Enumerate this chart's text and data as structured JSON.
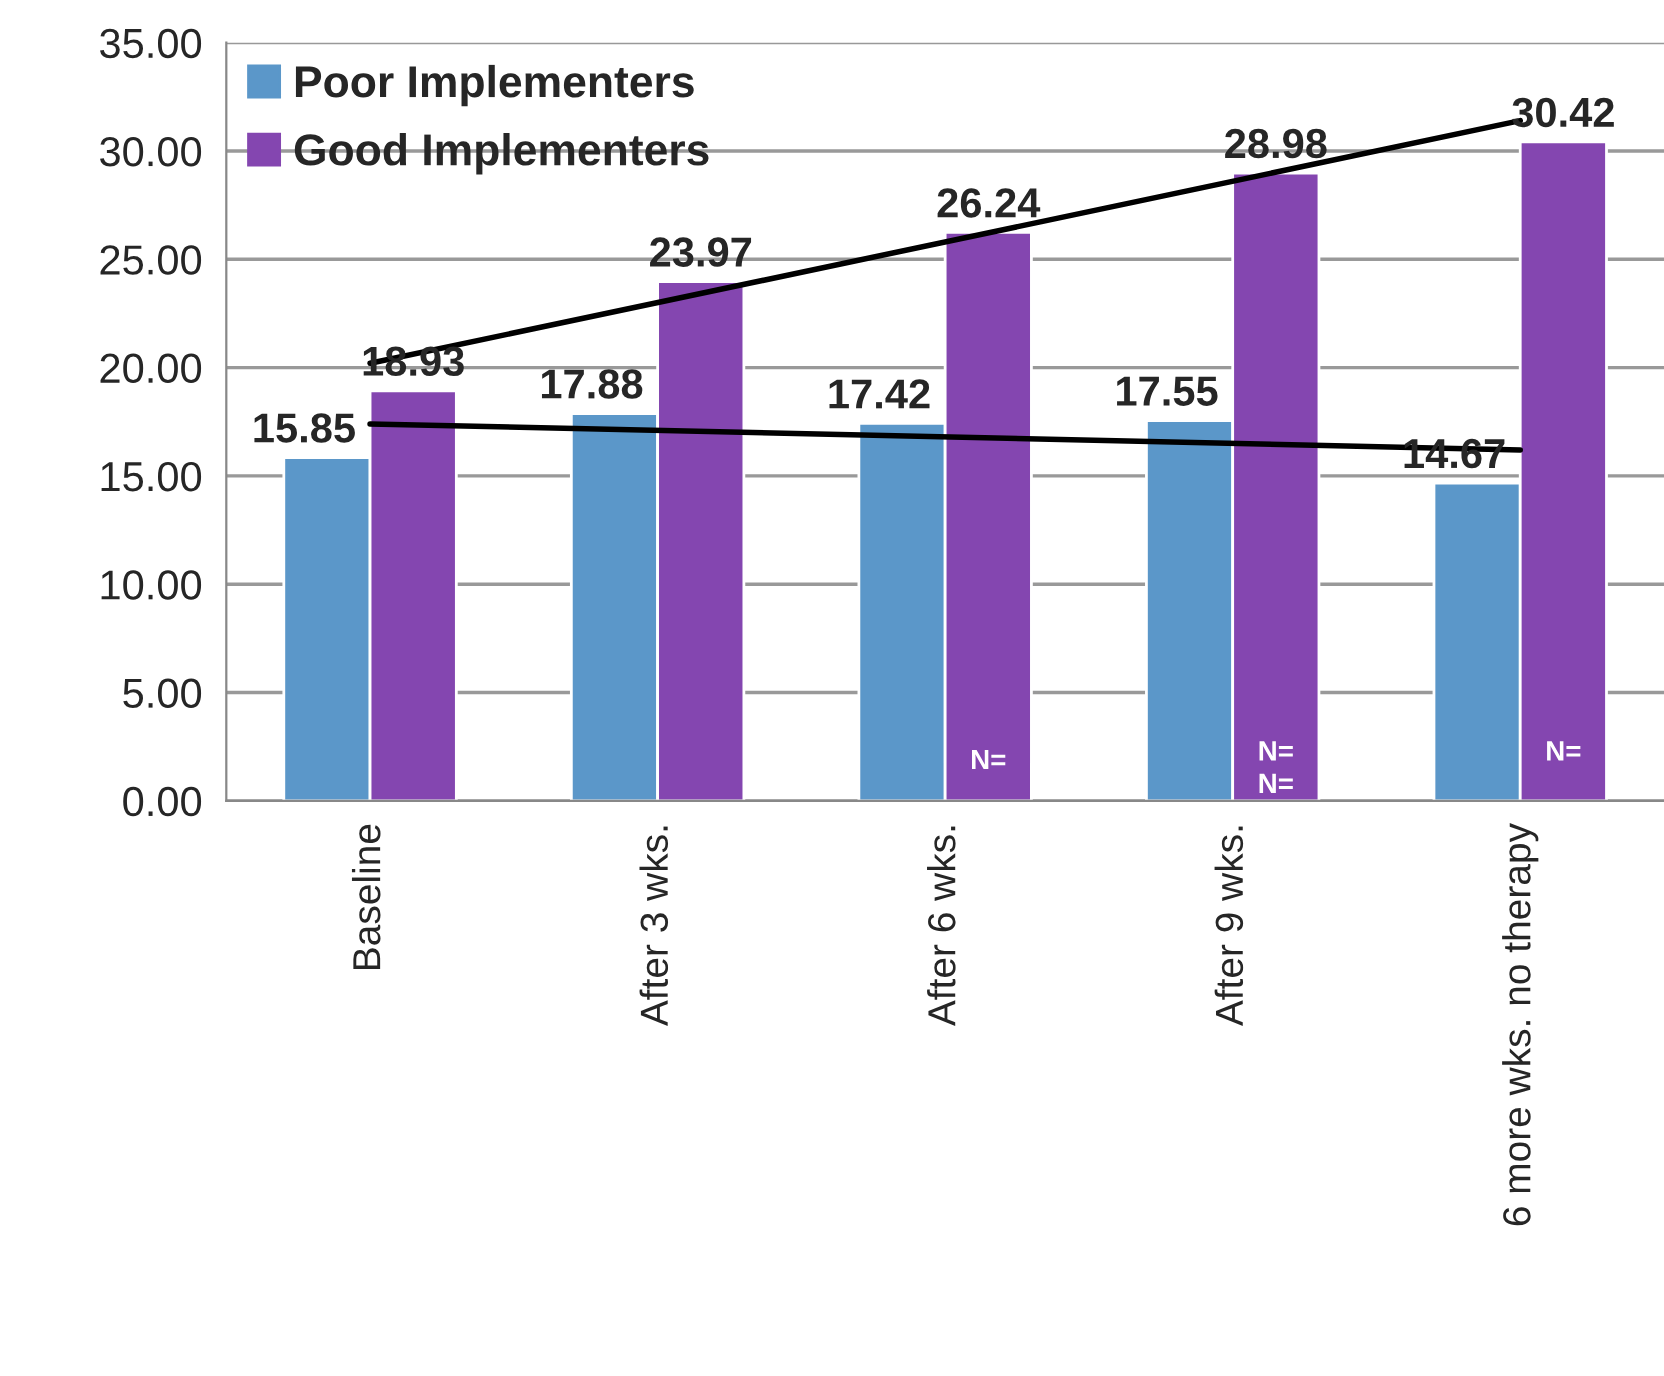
{
  "chart_data": {
    "type": "bar",
    "categories": [
      "Baseline",
      "After 3 wks.",
      "After 6 wks.",
      "After 9 wks.",
      "6 more wks. no therapy"
    ],
    "series": [
      {
        "name": "Poor Implementers",
        "color": "#5b97c9",
        "values": [
          15.85,
          17.88,
          17.42,
          17.55,
          14.67
        ],
        "value_labels": [
          "15.85",
          "17.88",
          "17.42",
          "17.55",
          "14.67"
        ]
      },
      {
        "name": "Good Implementers",
        "color": "#8446b0",
        "values": [
          18.93,
          23.97,
          26.24,
          28.98,
          30.42
        ],
        "value_labels": [
          "18.93",
          "23.97",
          "26.24",
          "28.98",
          "30.42"
        ]
      },
      {
        "type": "line",
        "color": "#000000",
        "x": [
          "Baseline",
          "6 more wks. no therapy"
        ],
        "values": [
          17.4,
          16.2
        ]
      },
      {
        "type": "line",
        "color": "#000000",
        "x": [
          "Baseline",
          "6 more wks. no therapy"
        ],
        "values": [
          20.2,
          31.4
        ]
      }
    ],
    "ylim": [
      0,
      35
    ],
    "yticks": [
      {
        "value": 0,
        "label": "0.00"
      },
      {
        "value": 5,
        "label": "5.00"
      },
      {
        "value": 10,
        "label": "10.00"
      },
      {
        "value": 15,
        "label": "15.00"
      },
      {
        "value": 20,
        "label": "20.00"
      },
      {
        "value": 25,
        "label": "25.00"
      },
      {
        "value": 30,
        "label": "30.00"
      },
      {
        "value": 35,
        "label": "35.00"
      }
    ],
    "grid": "y",
    "legend": "top left",
    "annotations": [
      {
        "text": "N=",
        "x": "After 6 wks.",
        "y": 1.2
      },
      {
        "text": "N=",
        "x": "After 9 wks.",
        "y": 0.1
      },
      {
        "text": "N=",
        "x": "After 9 wks.",
        "y": 1.6
      },
      {
        "text": "N=",
        "x": "6 more wks. no therapy",
        "y": 1.6
      }
    ]
  }
}
